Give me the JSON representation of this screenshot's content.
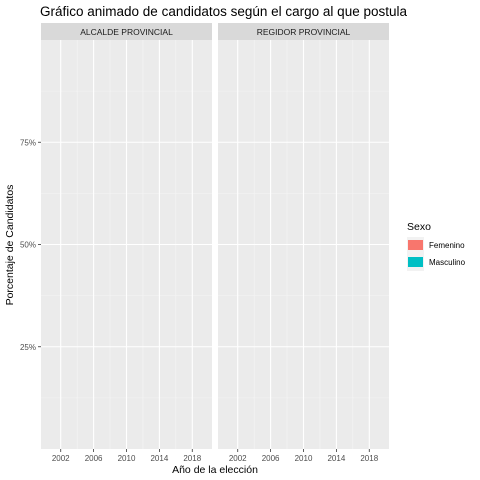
{
  "chart_data": {
    "type": "bar",
    "title": "Gráfico animado de candidatos según el cargo al que postula",
    "xlabel": "Año de la elección",
    "ylabel": "Porcentaje de Candidatos",
    "facets": [
      "ALCALDE PROVINCIAL",
      "REGIDOR PROVINCIAL"
    ],
    "x_ticks": [
      2002,
      2006,
      2010,
      2014,
      2018
    ],
    "xlim": [
      1999.6,
      2020.4
    ],
    "y_ticks": [
      0.25,
      0.5,
      0.75
    ],
    "y_tick_labels": [
      "25%",
      "50%",
      "75%"
    ],
    "ylim": [
      0.0,
      1.0
    ],
    "grid": true,
    "legend": {
      "title": "Sexo",
      "position": "right",
      "items": [
        {
          "label": "Femenino",
          "color": "#F8766D"
        },
        {
          "label": "Masculino",
          "color": "#00BFC4"
        }
      ]
    },
    "series": [
      {
        "name": "Femenino",
        "values": []
      },
      {
        "name": "Masculino",
        "values": []
      }
    ],
    "colors": {
      "panel_bg": "#EBEBEB",
      "strip_bg": "#D9D9D9",
      "grid_major": "#FFFFFF",
      "grid_minor": "#F5F5F5"
    }
  }
}
